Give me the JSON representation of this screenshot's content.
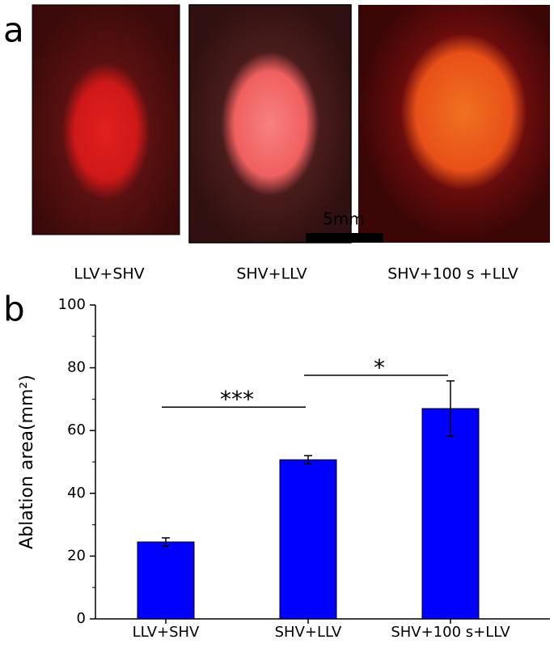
{
  "figure": {
    "panel_a_label": "a",
    "image_captions": [
      "LLV+SHV",
      "SHV+LLV",
      "SHV+100 s +LLV"
    ],
    "scale_bar": "5mm"
  },
  "chart_data": {
    "type": "bar",
    "panel_label": "b",
    "ylabel": "Ablation area(mm²)",
    "categories": [
      "LLV+SHV",
      "SHV+LLV",
      "SHV+100 s+LLV"
    ],
    "values": [
      24.5,
      50.7,
      67
    ],
    "errors": [
      1.3,
      1.3,
      8.8
    ],
    "color": "#0000ff",
    "ylim": [
      0,
      100
    ],
    "yticks": [
      0,
      20,
      40,
      60,
      80,
      100
    ],
    "annotations": [
      {
        "text": "***",
        "from": 0,
        "to": 1
      },
      {
        "text": "*",
        "from": 1,
        "to": 2
      }
    ]
  }
}
